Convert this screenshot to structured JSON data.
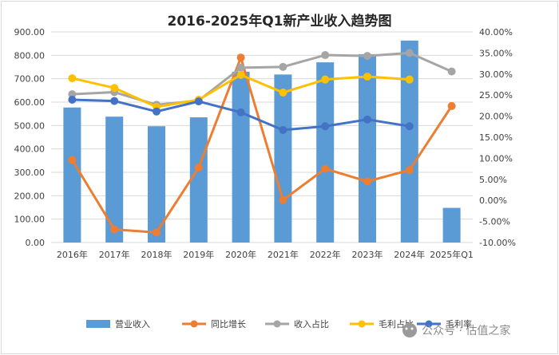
{
  "chart_data": {
    "type": "bar",
    "title": "2016-2025年Q1新产业收入趋势图",
    "categories": [
      "2016年",
      "2017年",
      "2018年",
      "2019年",
      "2020年",
      "2021年",
      "2022年",
      "2023年",
      "2024年",
      "2025年Q1"
    ],
    "left_axis": {
      "min": 0,
      "max": 900,
      "step": 100,
      "tick_labels": [
        "0.00",
        "100.00",
        "200.00",
        "300.00",
        "400.00",
        "500.00",
        "600.00",
        "700.00",
        "800.00",
        "900.00"
      ]
    },
    "right_axis": {
      "min": -10,
      "max": 40,
      "step": 5,
      "tick_labels": [
        "-10.00%",
        "-5.00%",
        "0.00%",
        "5.00%",
        "10.00%",
        "15.00%",
        "20.00%",
        "25.00%",
        "30.00%",
        "35.00%",
        "40.00%"
      ]
    },
    "series": [
      {
        "name": "营业收入",
        "type": "bar",
        "axis": "left",
        "color": "#5b9bd5",
        "values": [
          577,
          538,
          497,
          535,
          730,
          718,
          770,
          805,
          863,
          148
        ]
      },
      {
        "name": "同比增长",
        "type": "line",
        "axis": "right",
        "color": "#ed7d31",
        "values": [
          9.6,
          -6.9,
          -7.6,
          7.8,
          33.9,
          0.1,
          7.5,
          4.5,
          7.2,
          22.4
        ]
      },
      {
        "name": "收入占比",
        "type": "line",
        "axis": "right",
        "color": "#a5a5a5",
        "values": [
          25.2,
          25.7,
          22.7,
          23.7,
          31.5,
          31.7,
          34.5,
          34.3,
          35.0,
          30.6
        ]
      },
      {
        "name": "毛利占比",
        "type": "line",
        "axis": "right",
        "color": "#ffc000",
        "values": [
          29.0,
          26.7,
          22.2,
          23.9,
          29.8,
          25.6,
          28.7,
          29.4,
          28.7,
          null
        ]
      },
      {
        "name": "毛利率",
        "type": "line",
        "axis": "right",
        "color": "#4472c4",
        "values": [
          23.9,
          23.6,
          21.1,
          23.5,
          20.9,
          16.7,
          17.6,
          19.2,
          17.6,
          null
        ]
      }
    ],
    "legend_position": "bottom"
  },
  "watermark": "公众号 · 估值之家"
}
